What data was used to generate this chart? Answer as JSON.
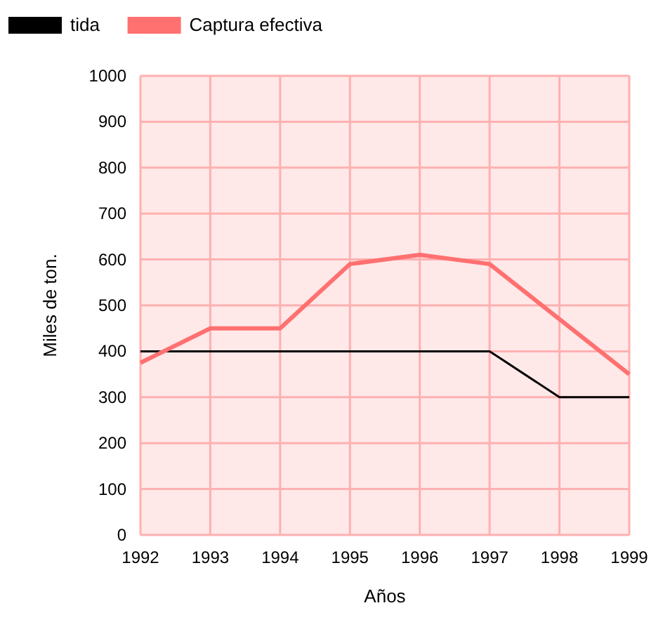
{
  "chart_data": {
    "type": "line",
    "xlabel": "Años",
    "ylabel": "Miles de ton.",
    "x": [
      1992,
      1993,
      1994,
      1995,
      1996,
      1997,
      1998,
      1999
    ],
    "series": [
      {
        "name": "tida",
        "color": "#000000",
        "values": [
          400,
          400,
          400,
          400,
          400,
          400,
          300,
          300
        ]
      },
      {
        "name": "Captura efectiva",
        "color": "#ff7070",
        "values": [
          375,
          450,
          450,
          590,
          610,
          590,
          470,
          350
        ]
      }
    ],
    "xlim": [
      1992,
      1999
    ],
    "xticks": [
      1992,
      1993,
      1994,
      1995,
      1996,
      1997,
      1998,
      1999
    ],
    "ylim": [
      0,
      1000
    ],
    "yticks": [
      0,
      100,
      200,
      300,
      400,
      500,
      600,
      700,
      800,
      900,
      1000
    ],
    "grid": true,
    "legend": "top left",
    "marker": "none",
    "line_style": "solid"
  }
}
